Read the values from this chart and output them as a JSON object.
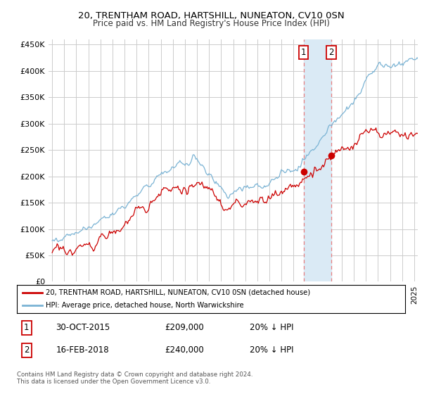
{
  "title_line1": "20, TRENTHAM ROAD, HARTSHILL, NUNEATON, CV10 0SN",
  "title_line2": "Price paid vs. HM Land Registry's House Price Index (HPI)",
  "ylabel_ticks": [
    "£0",
    "£50K",
    "£100K",
    "£150K",
    "£200K",
    "£250K",
    "£300K",
    "£350K",
    "£400K",
    "£450K"
  ],
  "ylabel_values": [
    0,
    50000,
    100000,
    150000,
    200000,
    250000,
    300000,
    350000,
    400000,
    450000
  ],
  "ylim": [
    0,
    460000
  ],
  "xlim_start": 1994.7,
  "xlim_end": 2025.3,
  "hpi_color": "#7ab3d4",
  "price_color": "#cc0000",
  "sale1_date": 2015.83,
  "sale1_price": 209000,
  "sale2_date": 2018.12,
  "sale2_price": 240000,
  "legend_line1": "20, TRENTHAM ROAD, HARTSHILL, NUNEATON, CV10 0SN (detached house)",
  "legend_line2": "HPI: Average price, detached house, North Warwickshire",
  "table_row1": [
    "1",
    "30-OCT-2015",
    "£209,000",
    "20% ↓ HPI"
  ],
  "table_row2": [
    "2",
    "16-FEB-2018",
    "£240,000",
    "20% ↓ HPI"
  ],
  "footnote": "Contains HM Land Registry data © Crown copyright and database right 2024.\nThis data is licensed under the Open Government Licence v3.0.",
  "background_color": "#ffffff",
  "grid_color": "#cccccc",
  "highlight_color": "#daeaf5"
}
